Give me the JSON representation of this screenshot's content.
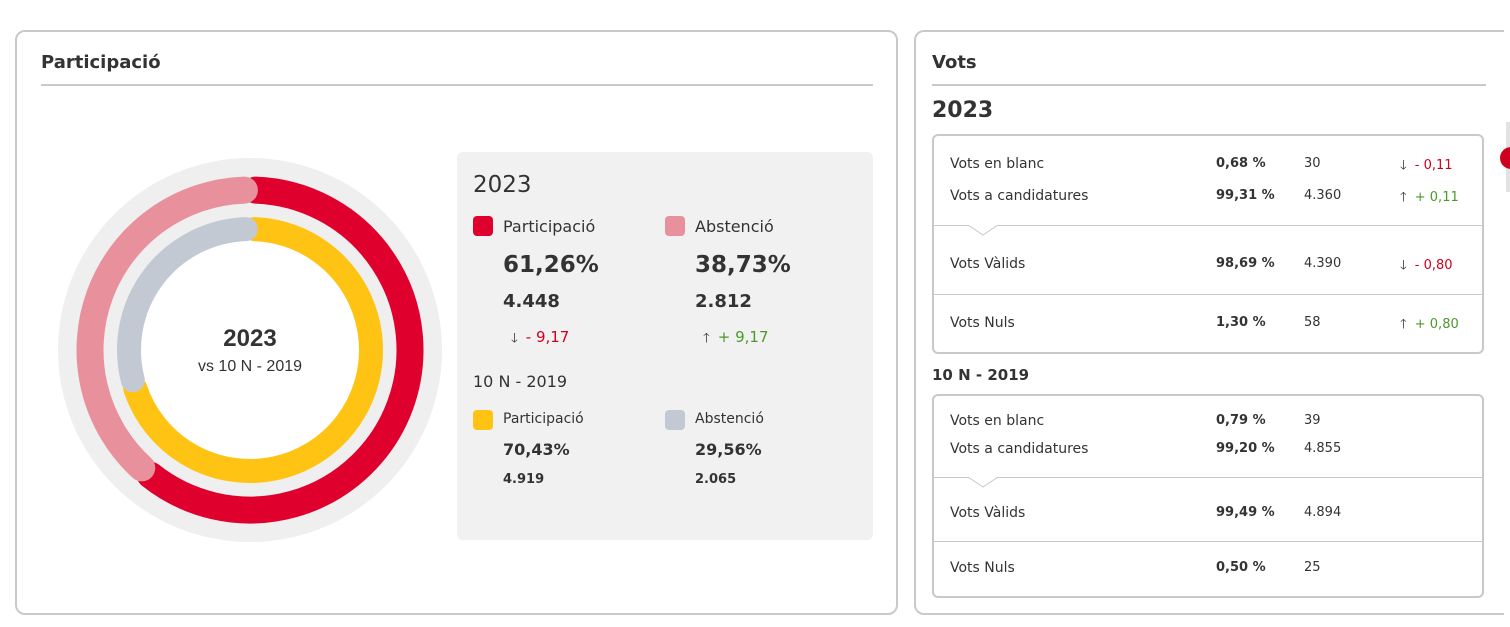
{
  "participacio": {
    "title": "Participació",
    "center_year": "2023",
    "center_sub": "vs 10 N - 2019",
    "current": {
      "year": "2023",
      "participacio": {
        "label": "Participació",
        "pct": "61,26%",
        "count": "4.448",
        "delta": "- 9,17",
        "direction": "down"
      },
      "abstencio": {
        "label": "Abstenció",
        "pct": "38,73%",
        "count": "2.812",
        "delta": "+ 9,17",
        "direction": "up"
      }
    },
    "previous": {
      "year": "10 N - 2019",
      "participacio": {
        "label": "Participació",
        "pct": "70,43%",
        "count": "4.919"
      },
      "abstencio": {
        "label": "Abstenció",
        "pct": "29,56%",
        "count": "2.065"
      }
    },
    "colors": {
      "participacio_2023": "#e0002e",
      "abstencio_2023": "#e8909c",
      "participacio_2019": "#ffc313",
      "abstencio_2019": "#c3c9d3",
      "track": "#efefef"
    }
  },
  "chart_data": {
    "type": "pie",
    "rings": [
      {
        "name": "2023",
        "categories": [
          "Participació",
          "Abstenció"
        ],
        "values": [
          61.26,
          38.73
        ]
      },
      {
        "name": "10 N - 2019",
        "categories": [
          "Participació",
          "Abstenció"
        ],
        "values": [
          70.43,
          29.56
        ]
      }
    ]
  },
  "vots": {
    "title": "Vots",
    "current": {
      "year": "2023",
      "rows": [
        {
          "label": "Vots en blanc",
          "pct": "0,68 %",
          "count": "30",
          "delta": "- 0,11",
          "direction": "down"
        },
        {
          "label": "Vots a candidatures",
          "pct": "99,31 %",
          "count": "4.360",
          "delta": "+ 0,11",
          "direction": "up"
        },
        {
          "label": "Vots Vàlids",
          "pct": "98,69 %",
          "count": "4.390",
          "delta": "- 0,80",
          "direction": "down"
        },
        {
          "label": "Vots Nuls",
          "pct": "1,30 %",
          "count": "58",
          "delta": "+ 0,80",
          "direction": "up"
        }
      ]
    },
    "previous": {
      "year": "10 N - 2019",
      "rows": [
        {
          "label": "Vots en blanc",
          "pct": "0,79 %",
          "count": "39"
        },
        {
          "label": "Vots a candidatures",
          "pct": "99,20 %",
          "count": "4.855"
        },
        {
          "label": "Vots Vàlids",
          "pct": "99,49 %",
          "count": "4.894"
        },
        {
          "label": "Vots Nuls",
          "pct": "0,50 %",
          "count": "25"
        }
      ]
    },
    "arrows": {
      "down": "🡓",
      "up": "🡑"
    }
  }
}
